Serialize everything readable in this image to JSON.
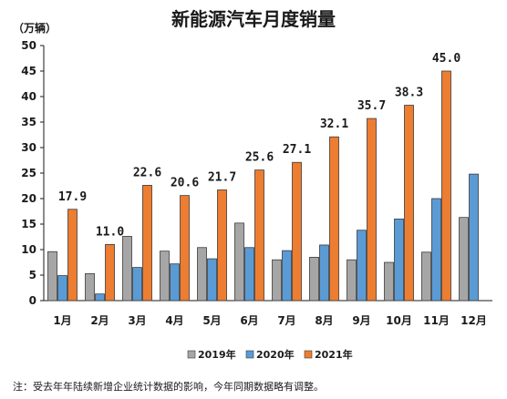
{
  "chart_data": {
    "type": "bar",
    "title": "新能源汽车月度销量",
    "ylabel": "（万辆）",
    "ylim": [
      0,
      50
    ],
    "yticks": [
      0,
      5,
      10,
      15,
      20,
      25,
      30,
      35,
      40,
      45,
      50
    ],
    "categories": [
      "1月",
      "2月",
      "3月",
      "4月",
      "5月",
      "6月",
      "7月",
      "8月",
      "9月",
      "10月",
      "11月",
      "12月"
    ],
    "series": [
      {
        "name": "2019年",
        "color": "#a6a6a6",
        "values": [
          9.6,
          5.3,
          12.6,
          9.7,
          10.4,
          15.2,
          8.0,
          8.5,
          8.0,
          7.5,
          9.5,
          16.3
        ]
      },
      {
        "name": "2020年",
        "color": "#5b9bd5",
        "values": [
          4.9,
          1.3,
          6.5,
          7.2,
          8.2,
          10.4,
          9.8,
          10.9,
          13.8,
          16.0,
          20.0,
          24.8
        ]
      },
      {
        "name": "2021年",
        "color": "#ed7d31",
        "values": [
          17.9,
          11.0,
          22.6,
          20.6,
          21.7,
          25.6,
          27.1,
          32.1,
          35.7,
          38.3,
          45.0,
          null
        ]
      }
    ],
    "data_labels": {
      "series": "2021年",
      "labels": [
        "17.9",
        "11.0",
        "22.6",
        "20.6",
        "21.7",
        "25.6",
        "27.1",
        "32.1",
        "35.7",
        "38.3",
        "45.0",
        null
      ]
    },
    "legend": "bottom",
    "grid": false
  },
  "note": "注：受去年年陆续新增企业统计数据的影响，今年同期数据略有调整。"
}
